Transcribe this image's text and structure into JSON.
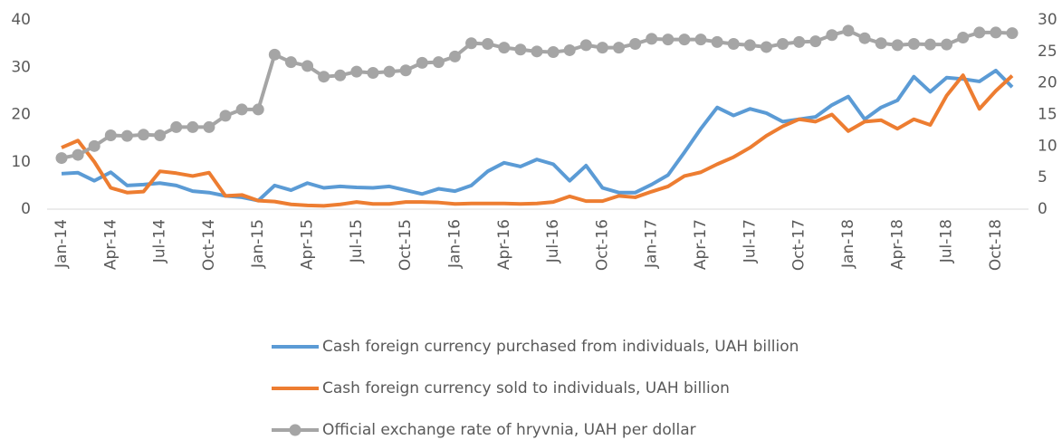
{
  "chart_data": {
    "type": "line",
    "categories": [
      "Jan-14",
      null,
      null,
      "Apr-14",
      null,
      null,
      "Jul-14",
      null,
      null,
      "Oct-14",
      null,
      null,
      "Jan-15",
      null,
      null,
      "Apr-15",
      null,
      null,
      "Jul-15",
      null,
      null,
      "Oct-15",
      null,
      null,
      "Jan-16",
      null,
      null,
      "Apr-16",
      null,
      null,
      "Jul-16",
      null,
      null,
      "Oct-16",
      null,
      null,
      "Jan-17",
      null,
      null,
      "Apr-17",
      null,
      null,
      "Jul-17",
      null,
      null,
      "Oct-17",
      null,
      null,
      "Jan-18",
      null,
      null,
      "Apr-18",
      null,
      null,
      "Jul-18",
      null,
      null,
      "Oct-18",
      null
    ],
    "series": [
      {
        "name": "Cash foreign currency purchased from individuals, UAH billion",
        "color": "#5b9bd5",
        "values": [
          7.5,
          7.7,
          6,
          7.8,
          5,
          5.2,
          5.5,
          5,
          3.8,
          3.5,
          2.8,
          2.5,
          1.8,
          5,
          4,
          5.5,
          4.5,
          4.8,
          4.6,
          4.5,
          4.8,
          4,
          3.2,
          4.3,
          3.8,
          5,
          8,
          9.8,
          9,
          10.5,
          9.5,
          6,
          9.2,
          4.5,
          3.5,
          3.5,
          5.2,
          7.2,
          12,
          17,
          21.5,
          19.8,
          21.2,
          20.3,
          18.5,
          19,
          19.5,
          22,
          23.8,
          19,
          21.5,
          23,
          28,
          24.8,
          27.8,
          27.5,
          27,
          29.3,
          25.8
        ]
      },
      {
        "name": "Cash foreign currency sold to individuals, UAH billion",
        "color": "#ed7d31",
        "values": [
          13,
          14.5,
          10,
          4.5,
          3.5,
          3.7,
          8,
          7.6,
          7,
          7.7,
          2.8,
          3,
          1.8,
          1.6,
          1,
          0.8,
          0.7,
          1,
          1.5,
          1.1,
          1.1,
          1.5,
          1.5,
          1.4,
          1.1,
          1.2,
          1.2,
          1.2,
          1.1,
          1.2,
          1.5,
          2.7,
          1.7,
          1.7,
          2.8,
          2.5,
          3.7,
          4.8,
          7,
          7.8,
          9.5,
          11,
          13,
          15.5,
          17.5,
          19,
          18.5,
          20,
          16.5,
          18.5,
          18.8,
          17,
          19,
          17.8,
          24,
          28.3,
          21.2,
          25,
          28.2
        ]
      },
      {
        "name": "Official exchange rate of hryvnia, UAH per dollar",
        "color": "#a5a5a5",
        "axis": "y2",
        "markers": true,
        "values": [
          8.1,
          8.6,
          10,
          11.7,
          11.6,
          11.8,
          11.7,
          13,
          13,
          13,
          14.8,
          15.8,
          15.8,
          24.5,
          23.3,
          22.7,
          21,
          21.2,
          21.8,
          21.6,
          21.8,
          22,
          23.2,
          23.3,
          24.2,
          26.3,
          26.2,
          25.6,
          25.3,
          25,
          24.9,
          25.2,
          26,
          25.6,
          25.6,
          26.2,
          27,
          26.9,
          26.9,
          26.9,
          26.5,
          26.2,
          26,
          25.7,
          26.2,
          26.5,
          26.6,
          27.6,
          28.3,
          27.1,
          26.3,
          26,
          26.2,
          26.1,
          26.1,
          27.2,
          28,
          28,
          27.9
        ]
      }
    ],
    "ylim": [
      0,
      40
    ],
    "yticks": [
      0,
      10,
      20,
      30,
      40
    ],
    "y2lim": [
      0,
      30
    ],
    "y2ticks": [
      0,
      5,
      10,
      15,
      20,
      25,
      30
    ],
    "grid": false,
    "legend": "bottom"
  }
}
